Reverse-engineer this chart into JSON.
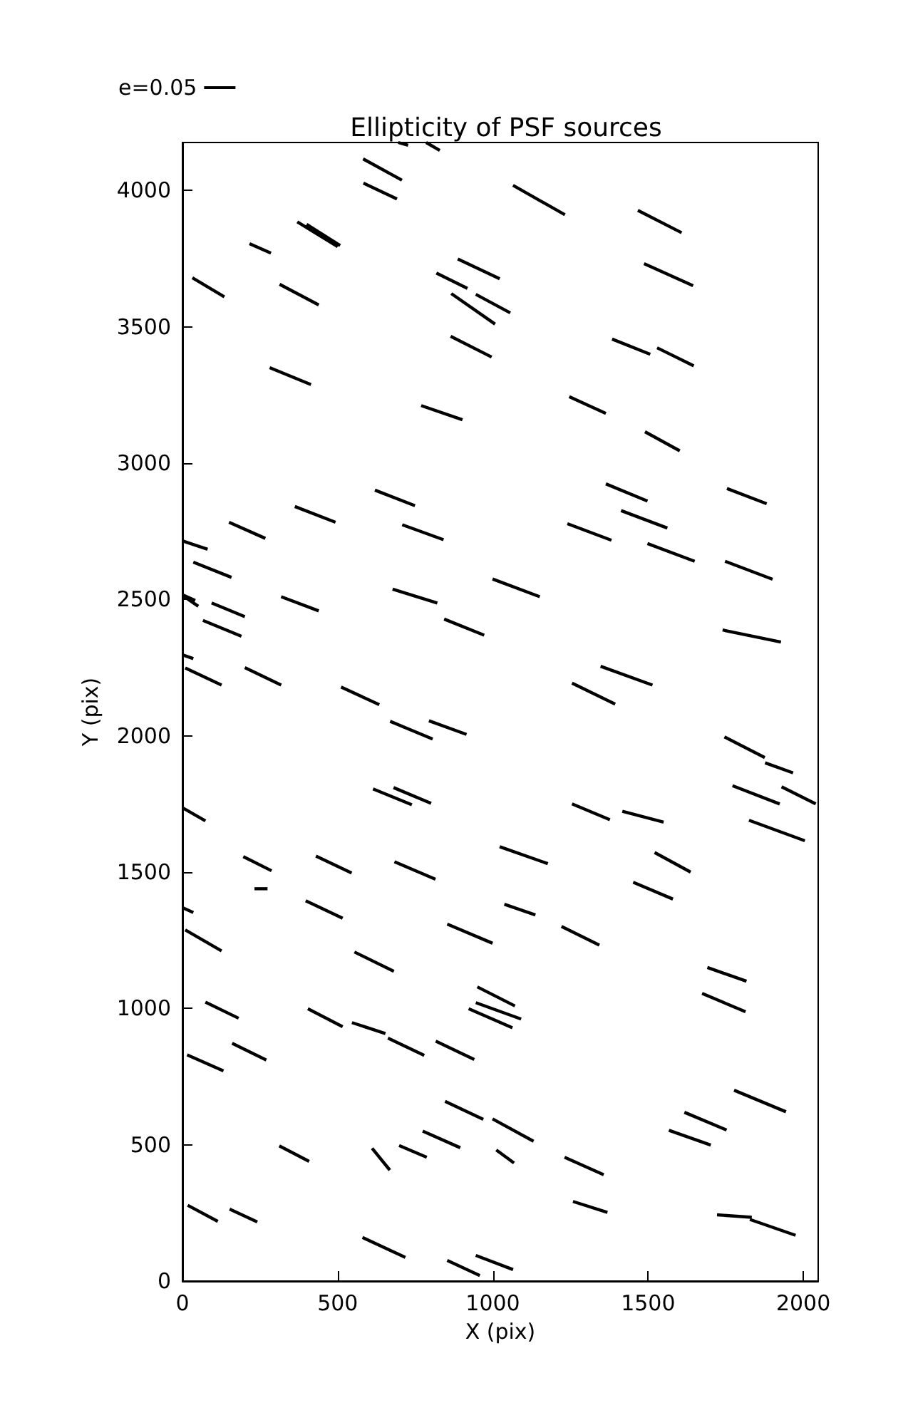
{
  "chart_data": {
    "type": "line",
    "title": "Ellipticity of PSF sources",
    "xlabel": "X (pix)",
    "ylabel": "Y (pix)",
    "xlim": [
      0,
      2048
    ],
    "ylim": [
      0,
      4176
    ],
    "xticks": [
      0,
      500,
      1000,
      1500,
      2000
    ],
    "yticks": [
      0,
      500,
      1000,
      1500,
      2000,
      2500,
      3000,
      3500,
      4000
    ],
    "legend": "top left",
    "marker": "none",
    "line_style": "solid",
    "series": [
      {
        "name": "e=0.05",
        "color": "#000000",
        "x": [
          695,
          727
        ],
        "values": [
          4176,
          4166
        ]
      },
      {
        "color": "#000000",
        "x": [
          785,
          829
        ],
        "values": [
          4176,
          4147
        ]
      },
      {
        "color": "#000000",
        "x": [
          582,
          707
        ],
        "values": [
          4116,
          4038
        ]
      },
      {
        "color": "#000000",
        "x": [
          583,
          691
        ],
        "values": [
          4027,
          3969
        ]
      },
      {
        "color": "#000000",
        "x": [
          370,
          500
        ],
        "values": [
          3885,
          3794
        ]
      },
      {
        "color": "#000000",
        "x": [
          400,
          508
        ],
        "values": [
          3876,
          3798
        ]
      },
      {
        "color": "#000000",
        "x": [
          216,
          285
        ],
        "values": [
          3805,
          3770
        ]
      },
      {
        "color": "#000000",
        "x": [
          32,
          135
        ],
        "values": [
          3680,
          3610
        ]
      },
      {
        "color": "#000000",
        "x": [
          313,
          439
        ],
        "values": [
          3656,
          3580
        ]
      },
      {
        "color": "#000000",
        "x": [
          887,
          1022
        ],
        "values": [
          3749,
          3676
        ]
      },
      {
        "color": "#000000",
        "x": [
          818,
          918
        ],
        "values": [
          3697,
          3641
        ]
      },
      {
        "color": "#000000",
        "x": [
          866,
          1007
        ],
        "values": [
          3622,
          3510
        ]
      },
      {
        "color": "#000000",
        "x": [
          945,
          1056
        ],
        "values": [
          3619,
          3551
        ]
      },
      {
        "color": "#000000",
        "x": [
          864,
          996
        ],
        "values": [
          3465,
          3389
        ]
      },
      {
        "color": "#000000",
        "x": [
          281,
          414
        ],
        "values": [
          3350,
          3288
        ]
      },
      {
        "color": "#000000",
        "x": [
          769,
          902
        ],
        "values": [
          3211,
          3159
        ]
      },
      {
        "color": "#000000",
        "x": [
          620,
          749
        ],
        "values": [
          2901,
          2844
        ]
      },
      {
        "color": "#000000",
        "x": [
          362,
          493
        ],
        "values": [
          2841,
          2783
        ]
      },
      {
        "color": "#000000",
        "x": [
          150,
          267
        ],
        "values": [
          2783,
          2724
        ]
      },
      {
        "color": "#000000",
        "x": [
          708,
          841
        ],
        "values": [
          2774,
          2719
        ]
      },
      {
        "color": "#000000",
        "x": [
          1065,
          1232
        ],
        "values": [
          4019,
          3911
        ]
      },
      {
        "color": "#000000",
        "x": [
          1467,
          1608
        ],
        "values": [
          3927,
          3845
        ]
      },
      {
        "color": "#000000",
        "x": [
          1487,
          1645
        ],
        "values": [
          3732,
          3651
        ]
      },
      {
        "color": "#000000",
        "x": [
          1384,
          1507
        ],
        "values": [
          3455,
          3399
        ]
      },
      {
        "color": "#000000",
        "x": [
          1529,
          1647
        ],
        "values": [
          3423,
          3357
        ]
      },
      {
        "color": "#000000",
        "x": [
          1246,
          1364
        ],
        "values": [
          3244,
          3182
        ]
      },
      {
        "color": "#000000",
        "x": [
          1490,
          1602
        ],
        "values": [
          3115,
          3045
        ]
      },
      {
        "color": "#000000",
        "x": [
          1364,
          1498
        ],
        "values": [
          2924,
          2861
        ]
      },
      {
        "color": "#000000",
        "x": [
          1754,
          1882
        ],
        "values": [
          2907,
          2851
        ]
      },
      {
        "color": "#000000",
        "x": [
          1413,
          1562
        ],
        "values": [
          2826,
          2762
        ]
      },
      {
        "color": "#000000",
        "x": [
          1240,
          1382
        ],
        "values": [
          2778,
          2717
        ]
      },
      {
        "color": "#000000",
        "x": [
          1498,
          1650
        ],
        "values": [
          2705,
          2640
        ]
      },
      {
        "color": "#000000",
        "x": [
          1748,
          1901
        ],
        "values": [
          2640,
          2574
        ]
      },
      {
        "color": "#000000",
        "x": [
          999,
          1151
        ],
        "values": [
          2575,
          2510
        ]
      },
      {
        "color": "#000000",
        "x": [
          1740,
          1928
        ],
        "values": [
          2388,
          2344
        ]
      },
      {
        "color": "#000000",
        "x": [
          1347,
          1514
        ],
        "values": [
          2255,
          2186
        ]
      },
      {
        "color": "#000000",
        "x": [
          1255,
          1394
        ],
        "values": [
          2193,
          2116
        ]
      },
      {
        "color": "#000000",
        "x": [
          1746,
          1876
        ],
        "values": [
          1996,
          1920
        ]
      },
      {
        "color": "#000000",
        "x": [
          1877,
          1967
        ],
        "values": [
          1901,
          1864
        ]
      },
      {
        "color": "#000000",
        "x": [
          1772,
          1924
        ],
        "values": [
          1817,
          1750
        ]
      },
      {
        "color": "#000000",
        "x": [
          1930,
          2040
        ],
        "values": [
          1813,
          1750
        ]
      },
      {
        "color": "#000000",
        "x": [
          1825,
          2005
        ],
        "values": [
          1690,
          1615
        ]
      },
      {
        "color": "#000000",
        "x": [
          1255,
          1377
        ],
        "values": [
          1750,
          1692
        ]
      },
      {
        "color": "#000000",
        "x": [
          1417,
          1550
        ],
        "values": [
          1723,
          1683
        ]
      },
      {
        "color": "#000000",
        "x": [
          1022,
          1177
        ],
        "values": [
          1593,
          1531
        ]
      },
      {
        "color": "#000000",
        "x": [
          1521,
          1637
        ],
        "values": [
          1572,
          1500
        ]
      },
      {
        "color": "#000000",
        "x": [
          1452,
          1580
        ],
        "values": [
          1463,
          1401
        ]
      },
      {
        "color": "#000000",
        "x": [
          1037,
          1137
        ],
        "values": [
          1382,
          1343
        ]
      },
      {
        "color": "#000000",
        "x": [
          2,
          81
        ],
        "values": [
          2714,
          2684
        ]
      },
      {
        "color": "#000000",
        "x": [
          35,
          158
        ],
        "values": [
          2637,
          2581
        ]
      },
      {
        "color": "#000000",
        "x": [
          0,
          41
        ],
        "values": [
          2517,
          2496
        ]
      },
      {
        "color": "#000000",
        "x": [
          6,
          51
        ],
        "values": [
          2510,
          2475
        ]
      },
      {
        "color": "#000000",
        "x": [
          94,
          201
        ],
        "values": [
          2487,
          2437
        ]
      },
      {
        "color": "#000000",
        "x": [
          66,
          190
        ],
        "values": [
          2423,
          2365
        ]
      },
      {
        "color": "#000000",
        "x": [
          318,
          439
        ],
        "values": [
          2510,
          2458
        ]
      },
      {
        "color": "#000000",
        "x": [
          677,
          821
        ],
        "values": [
          2538,
          2487
        ]
      },
      {
        "color": "#000000",
        "x": [
          843,
          972
        ],
        "values": [
          2428,
          2369
        ]
      },
      {
        "color": "#000000",
        "x": [
          2,
          35
        ],
        "values": [
          2296,
          2283
        ]
      },
      {
        "color": "#000000",
        "x": [
          9,
          126
        ],
        "values": [
          2249,
          2186
        ]
      },
      {
        "color": "#000000",
        "x": [
          201,
          318
        ],
        "values": [
          2250,
          2186
        ]
      },
      {
        "color": "#000000",
        "x": [
          511,
          634
        ],
        "values": [
          2179,
          2114
        ]
      },
      {
        "color": "#000000",
        "x": [
          669,
          806
        ],
        "values": [
          2053,
          1988
        ]
      },
      {
        "color": "#000000",
        "x": [
          794,
          915
        ],
        "values": [
          2055,
          2005
        ]
      },
      {
        "color": "#000000",
        "x": [
          614,
          739
        ],
        "values": [
          1805,
          1747
        ]
      },
      {
        "color": "#000000",
        "x": [
          680,
          801
        ],
        "values": [
          1810,
          1752
        ]
      },
      {
        "color": "#000000",
        "x": [
          2,
          74
        ],
        "values": [
          1735,
          1688
        ]
      },
      {
        "color": "#000000",
        "x": [
          196,
          287
        ],
        "values": [
          1557,
          1505
        ]
      },
      {
        "color": "#000000",
        "x": [
          232,
          274
        ],
        "values": [
          1439,
          1439
        ]
      },
      {
        "color": "#000000",
        "x": [
          430,
          545
        ],
        "values": [
          1559,
          1497
        ]
      },
      {
        "color": "#000000",
        "x": [
          683,
          815
        ],
        "values": [
          1538,
          1474
        ]
      },
      {
        "color": "#000000",
        "x": [
          397,
          516
        ],
        "values": [
          1395,
          1331
        ]
      },
      {
        "color": "#000000",
        "x": [
          2,
          35
        ],
        "values": [
          1369,
          1352
        ]
      },
      {
        "color": "#000000",
        "x": [
          9,
          126
        ],
        "values": [
          1288,
          1211
        ]
      },
      {
        "color": "#000000",
        "x": [
          554,
          681
        ],
        "values": [
          1207,
          1136
        ]
      },
      {
        "color": "#000000",
        "x": [
          853,
          999
        ],
        "values": [
          1309,
          1239
        ]
      },
      {
        "color": "#000000",
        "x": [
          950,
          1071
        ],
        "values": [
          1079,
          1009
        ]
      },
      {
        "color": "#000000",
        "x": [
          945,
          1091
        ],
        "values": [
          1021,
          961
        ]
      },
      {
        "color": "#000000",
        "x": [
          922,
          1063
        ],
        "values": [
          999,
          929
        ]
      },
      {
        "color": "#000000",
        "x": [
          74,
          181
        ],
        "values": [
          1023,
          964
        ]
      },
      {
        "color": "#000000",
        "x": [
          404,
          516
        ],
        "values": [
          999,
          933
        ]
      },
      {
        "color": "#000000",
        "x": [
          546,
          654
        ],
        "values": [
          948,
          908
        ]
      },
      {
        "color": "#000000",
        "x": [
          662,
          779
        ],
        "values": [
          891,
          828
        ]
      },
      {
        "color": "#000000",
        "x": [
          816,
          940
        ],
        "values": [
          880,
          813
        ]
      },
      {
        "color": "#000000",
        "x": [
          15,
          132
        ],
        "values": [
          830,
          771
        ]
      },
      {
        "color": "#000000",
        "x": [
          160,
          270
        ],
        "values": [
          872,
          811
        ]
      },
      {
        "color": "#000000",
        "x": [
          846,
          969
        ],
        "values": [
          659,
          593
        ]
      },
      {
        "color": "#000000",
        "x": [
          999,
          1131
        ],
        "values": [
          595,
          513
        ]
      },
      {
        "color": "#000000",
        "x": [
          1011,
          1068
        ],
        "values": [
          481,
          433
        ]
      },
      {
        "color": "#000000",
        "x": [
          774,
          895
        ],
        "values": [
          550,
          489
        ]
      },
      {
        "color": "#000000",
        "x": [
          698,
          787
        ],
        "values": [
          497,
          454
        ]
      },
      {
        "color": "#000000",
        "x": [
          611,
          668
        ],
        "values": [
          487,
          407
        ]
      },
      {
        "color": "#000000",
        "x": [
          312,
          408
        ],
        "values": [
          496,
          439
        ]
      },
      {
        "color": "#000000",
        "x": [
          17,
          114
        ],
        "values": [
          278,
          219
        ]
      },
      {
        "color": "#000000",
        "x": [
          152,
          241
        ],
        "values": [
          264,
          217
        ]
      },
      {
        "color": "#000000",
        "x": [
          580,
          718
        ],
        "values": [
          160,
          87
        ]
      },
      {
        "color": "#000000",
        "x": [
          853,
          958
        ],
        "values": [
          76,
          20
        ]
      },
      {
        "color": "#000000",
        "x": [
          945,
          1065
        ],
        "values": [
          94,
          42
        ]
      },
      {
        "color": "#000000",
        "x": [
          1221,
          1343
        ],
        "values": [
          1301,
          1232
        ]
      },
      {
        "color": "#000000",
        "x": [
          1691,
          1817
        ],
        "values": [
          1150,
          1100
        ]
      },
      {
        "color": "#000000",
        "x": [
          1674,
          1814
        ],
        "values": [
          1055,
          988
        ]
      },
      {
        "color": "#000000",
        "x": [
          1777,
          1944
        ],
        "values": [
          700,
          621
        ]
      },
      {
        "color": "#000000",
        "x": [
          1617,
          1753
        ],
        "values": [
          619,
          554
        ]
      },
      {
        "color": "#000000",
        "x": [
          1567,
          1702
        ],
        "values": [
          553,
          499
        ]
      },
      {
        "color": "#000000",
        "x": [
          1231,
          1357
        ],
        "values": [
          454,
          390
        ]
      },
      {
        "color": "#000000",
        "x": [
          1258,
          1369
        ],
        "values": [
          292,
          252
        ]
      },
      {
        "color": "#000000",
        "x": [
          1722,
          1834
        ],
        "values": [
          243,
          234
        ]
      },
      {
        "color": "#000000",
        "x": [
          1828,
          1975
        ],
        "values": [
          226,
          168
        ]
      }
    ]
  }
}
